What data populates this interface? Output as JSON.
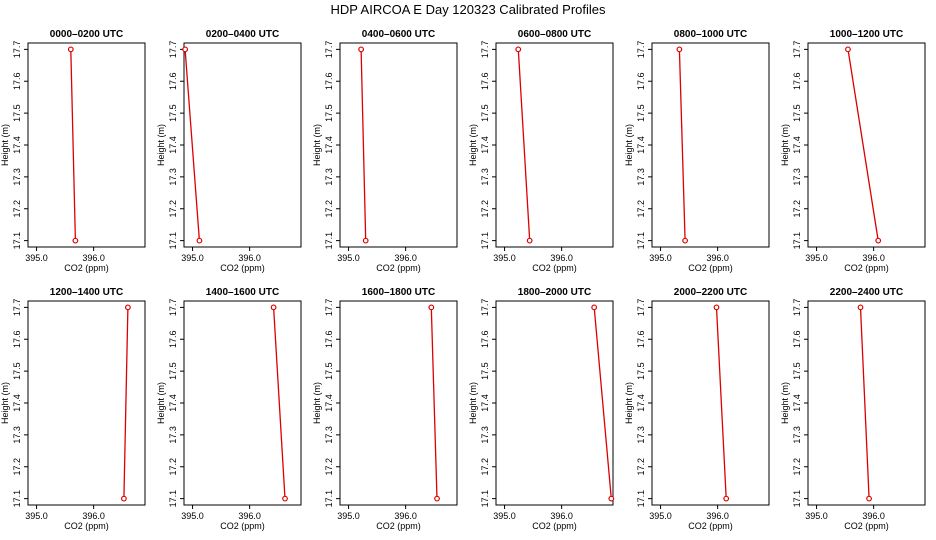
{
  "title": "HDP AIRCOA E  Day 120323  Calibrated Profiles",
  "chart_data": {
    "type": "line",
    "panels_layout": "2 rows x 6 columns",
    "xlabel": "CO2 (ppm)",
    "ylabel": "Height (m)",
    "ylim": [
      17.08,
      17.72
    ],
    "yticks": [
      "17.1",
      "17.2",
      "17.3",
      "17.4",
      "17.5",
      "17.6",
      "17.7"
    ],
    "line_color": "#dd0000",
    "panels": [
      {
        "title": "0000–0200 UTC",
        "xlim": [
          394.85,
          396.9
        ],
        "xticks": [
          "395.0",
          "396.0"
        ],
        "points": [
          {
            "x": 395.6,
            "y": 17.7
          },
          {
            "x": 395.68,
            "y": 17.1
          }
        ]
      },
      {
        "title": "0200–0400 UTC",
        "xlim": [
          394.85,
          396.9
        ],
        "xticks": [
          "395.0",
          "396.0"
        ],
        "points": [
          {
            "x": 394.87,
            "y": 17.7
          },
          {
            "x": 395.12,
            "y": 17.1
          }
        ]
      },
      {
        "title": "0400–0600 UTC",
        "xlim": [
          394.85,
          396.9
        ],
        "xticks": [
          "395.0",
          "396.0"
        ],
        "points": [
          {
            "x": 395.22,
            "y": 17.7
          },
          {
            "x": 395.3,
            "y": 17.1
          }
        ]
      },
      {
        "title": "0600–0800 UTC",
        "xlim": [
          394.85,
          396.9
        ],
        "xticks": [
          "395.0",
          "396.0"
        ],
        "points": [
          {
            "x": 395.24,
            "y": 17.7
          },
          {
            "x": 395.44,
            "y": 17.1
          }
        ]
      },
      {
        "title": "0800–1000 UTC",
        "xlim": [
          394.85,
          396.9
        ],
        "xticks": [
          "395.0",
          "396.0"
        ],
        "points": [
          {
            "x": 395.33,
            "y": 17.7
          },
          {
            "x": 395.43,
            "y": 17.1
          }
        ]
      },
      {
        "title": "1000–1200 UTC",
        "xlim": [
          394.85,
          396.9
        ],
        "xticks": [
          "395.0",
          "396.0"
        ],
        "points": [
          {
            "x": 395.55,
            "y": 17.7
          },
          {
            "x": 396.08,
            "y": 17.1
          }
        ]
      },
      {
        "title": "1200–1400 UTC",
        "xlim": [
          394.85,
          396.9
        ],
        "xticks": [
          "395.0",
          "396.0"
        ],
        "points": [
          {
            "x": 396.6,
            "y": 17.7
          },
          {
            "x": 396.53,
            "y": 17.1
          }
        ]
      },
      {
        "title": "1400–1600 UTC",
        "xlim": [
          394.85,
          396.9
        ],
        "xticks": [
          "395.0",
          "396.0"
        ],
        "points": [
          {
            "x": 396.42,
            "y": 17.7
          },
          {
            "x": 396.62,
            "y": 17.1
          }
        ]
      },
      {
        "title": "1600–1800 UTC",
        "xlim": [
          394.85,
          396.9
        ],
        "xticks": [
          "395.0",
          "396.0"
        ],
        "points": [
          {
            "x": 396.45,
            "y": 17.7
          },
          {
            "x": 396.55,
            "y": 17.1
          }
        ]
      },
      {
        "title": "1800–2000 UTC",
        "xlim": [
          394.85,
          396.9
        ],
        "xticks": [
          "395.0",
          "396.0"
        ],
        "points": [
          {
            "x": 396.57,
            "y": 17.7
          },
          {
            "x": 396.87,
            "y": 17.1
          }
        ]
      },
      {
        "title": "2000–2200 UTC",
        "xlim": [
          394.85,
          396.9
        ],
        "xticks": [
          "395.0",
          "396.0"
        ],
        "points": [
          {
            "x": 395.98,
            "y": 17.7
          },
          {
            "x": 396.15,
            "y": 17.1
          }
        ]
      },
      {
        "title": "2200–2400 UTC",
        "xlim": [
          394.85,
          396.9
        ],
        "xticks": [
          "395.0",
          "396.0"
        ],
        "points": [
          {
            "x": 395.77,
            "y": 17.7
          },
          {
            "x": 395.92,
            "y": 17.1
          }
        ]
      }
    ]
  }
}
